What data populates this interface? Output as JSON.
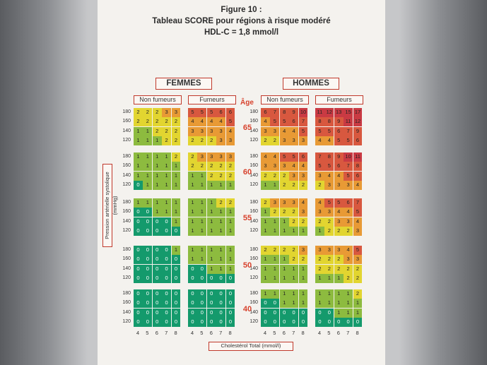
{
  "title": {
    "line1": "Figure 10 :",
    "line2": "Tableau SCORE pour régions à risque modéré",
    "line3": "HDL-C = 1,8 mmol/l"
  },
  "headers": {
    "femmes": "FEMMES",
    "hommes": "HOMMES"
  },
  "subheaders": {
    "non_fumeurs": "Non fumeurs",
    "fumeurs": "Fumeurs"
  },
  "age_title": "Âge",
  "ages": [
    "65",
    "60",
    "55",
    "50",
    "40"
  ],
  "sbp_values": [
    "180",
    "160",
    "140",
    "120"
  ],
  "chol_values": [
    "4",
    "5",
    "6",
    "7",
    "8"
  ],
  "ylabel": "Pression artérielle systolique (mmHg)",
  "xlabel": "Cholestérol Total (mmol/l)",
  "colors": {
    "green_dark": "#149a6c",
    "green": "#8dbb3f",
    "yellow": "#e2d530",
    "orange": "#e89a35",
    "red": "#d8583f",
    "red_dark": "#c93a43"
  },
  "tables": {
    "femmes_non_fumeurs": [
      [
        [
          2,
          2,
          2,
          3,
          3
        ],
        [
          2,
          2,
          2,
          2,
          2
        ],
        [
          1,
          1,
          2,
          2,
          2
        ],
        [
          1,
          1,
          1,
          2,
          2
        ]
      ],
      [
        [
          1,
          1,
          1,
          1,
          2
        ],
        [
          1,
          1,
          1,
          1,
          1
        ],
        [
          1,
          1,
          1,
          1,
          1
        ],
        [
          0,
          1,
          1,
          1,
          1
        ]
      ],
      [
        [
          1,
          1,
          1,
          1,
          1
        ],
        [
          0,
          0,
          1,
          1,
          1
        ],
        [
          0,
          0,
          0,
          0,
          1
        ],
        [
          0,
          0,
          0,
          0,
          0
        ]
      ],
      [
        [
          0,
          0,
          0,
          0,
          1
        ],
        [
          0,
          0,
          0,
          0,
          0
        ],
        [
          0,
          0,
          0,
          0,
          0
        ],
        [
          0,
          0,
          0,
          0,
          0
        ]
      ],
      [
        [
          0,
          0,
          0,
          0,
          0
        ],
        [
          0,
          0,
          0,
          0,
          0
        ],
        [
          0,
          0,
          0,
          0,
          0
        ],
        [
          0,
          0,
          0,
          0,
          0
        ]
      ]
    ],
    "femmes_fumeurs": [
      [
        [
          5,
          5,
          5,
          6,
          6
        ],
        [
          4,
          4,
          4,
          4,
          5
        ],
        [
          3,
          3,
          3,
          3,
          4
        ],
        [
          2,
          2,
          2,
          3,
          3
        ]
      ],
      [
        [
          2,
          3,
          3,
          3,
          3
        ],
        [
          2,
          2,
          2,
          2,
          2
        ],
        [
          1,
          1,
          2,
          2,
          2
        ],
        [
          1,
          1,
          1,
          1,
          1
        ]
      ],
      [
        [
          1,
          1,
          1,
          2,
          2
        ],
        [
          1,
          1,
          1,
          1,
          1
        ],
        [
          1,
          1,
          1,
          1,
          1
        ],
        [
          1,
          1,
          1,
          1,
          1
        ]
      ],
      [
        [
          1,
          1,
          1,
          1,
          1
        ],
        [
          1,
          1,
          1,
          1,
          1
        ],
        [
          0,
          0,
          1,
          1,
          1
        ],
        [
          0,
          0,
          0,
          0,
          0
        ]
      ],
      [
        [
          0,
          0,
          0,
          0,
          0
        ],
        [
          0,
          0,
          0,
          0,
          0
        ],
        [
          0,
          0,
          0,
          0,
          0
        ],
        [
          0,
          0,
          0,
          0,
          0
        ]
      ]
    ],
    "hommes_non_fumeurs": [
      [
        [
          6,
          7,
          8,
          9,
          10
        ],
        [
          4,
          5,
          5,
          6,
          7
        ],
        [
          3,
          3,
          4,
          4,
          5
        ],
        [
          2,
          2,
          3,
          3,
          3
        ]
      ],
      [
        [
          4,
          4,
          5,
          5,
          6
        ],
        [
          3,
          3,
          3,
          4,
          4
        ],
        [
          2,
          2,
          2,
          3,
          3
        ],
        [
          1,
          1,
          2,
          2,
          2
        ]
      ],
      [
        [
          2,
          3,
          3,
          3,
          4
        ],
        [
          1,
          2,
          2,
          2,
          3
        ],
        [
          1,
          1,
          1,
          2,
          2
        ],
        [
          1,
          1,
          1,
          1,
          1
        ]
      ],
      [
        [
          2,
          2,
          2,
          2,
          3
        ],
        [
          1,
          1,
          1,
          2,
          2
        ],
        [
          1,
          1,
          1,
          1,
          1
        ],
        [
          1,
          1,
          1,
          1,
          1
        ]
      ],
      [
        [
          1,
          1,
          1,
          1,
          1
        ],
        [
          0,
          0,
          1,
          1,
          1
        ],
        [
          0,
          0,
          0,
          0,
          0
        ],
        [
          0,
          0,
          0,
          0,
          0
        ]
      ]
    ],
    "hommes_fumeurs": [
      [
        [
          11,
          12,
          13,
          15,
          17
        ],
        [
          8,
          8,
          9,
          11,
          12
        ],
        [
          5,
          5,
          6,
          7,
          9
        ],
        [
          4,
          4,
          5,
          5,
          6
        ]
      ],
      [
        [
          7,
          8,
          9,
          10,
          11
        ],
        [
          5,
          5,
          6,
          7,
          8
        ],
        [
          3,
          4,
          4,
          5,
          6
        ],
        [
          2,
          3,
          3,
          3,
          4
        ]
      ],
      [
        [
          4,
          5,
          5,
          6,
          7
        ],
        [
          3,
          3,
          4,
          4,
          5
        ],
        [
          2,
          2,
          3,
          3,
          4
        ],
        [
          1,
          2,
          2,
          2,
          3
        ]
      ],
      [
        [
          3,
          3,
          3,
          4,
          5
        ],
        [
          2,
          2,
          2,
          3,
          3
        ],
        [
          2,
          2,
          2,
          2,
          2
        ],
        [
          1,
          1,
          1,
          2,
          2
        ]
      ],
      [
        [
          1,
          1,
          1,
          1,
          2
        ],
        [
          1,
          1,
          1,
          1,
          1
        ],
        [
          0,
          0,
          1,
          1,
          1
        ],
        [
          0,
          0,
          0,
          0,
          0
        ]
      ]
    ]
  }
}
